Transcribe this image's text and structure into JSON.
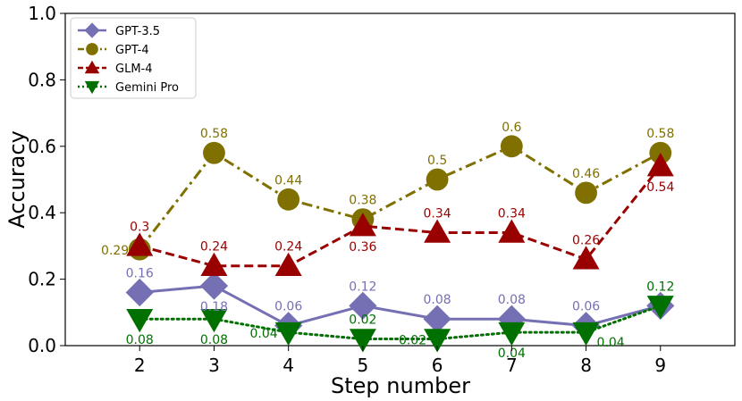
{
  "chart_data": {
    "type": "line",
    "title": "",
    "xlabel": "Step number",
    "ylabel": "Accuracy",
    "x": [
      2,
      3,
      4,
      5,
      6,
      7,
      8,
      9
    ],
    "x_ticks": [
      "2",
      "3",
      "4",
      "5",
      "6",
      "7",
      "8",
      "9"
    ],
    "xlim": [
      1,
      10
    ],
    "ylim": [
      0,
      1
    ],
    "y_ticks": [
      "0.0",
      "0.2",
      "0.4",
      "0.6",
      "0.8",
      "1.0"
    ],
    "grid": false,
    "legend_position": "top-left",
    "series": [
      {
        "name": "GPT-3.5",
        "color": "#7570b3",
        "marker": "diamond",
        "line_style": "solid",
        "values": [
          0.16,
          0.18,
          0.06,
          0.12,
          0.08,
          0.08,
          0.06,
          0.12
        ],
        "labels": [
          "0.16",
          "0.18",
          "0.06",
          "0.12",
          "0.08",
          "0.08",
          "0.06",
          ""
        ],
        "label_side": [
          "above",
          "below",
          "above",
          "above",
          "above",
          "above",
          "above",
          "above"
        ]
      },
      {
        "name": "GPT-4",
        "color": "#807000",
        "marker": "circle",
        "line_style": "dashdot",
        "values": [
          0.29,
          0.58,
          0.44,
          0.38,
          0.5,
          0.6,
          0.46,
          0.58
        ],
        "labels": [
          "0.29",
          "0.58",
          "0.44",
          "0.38",
          "0.5",
          "0.6",
          "0.46",
          "0.58"
        ],
        "label_side": [
          "left",
          "above",
          "above",
          "above",
          "above",
          "above",
          "above",
          "above"
        ]
      },
      {
        "name": "GLM-4",
        "color": "#990000",
        "marker": "triangle-up",
        "line_style": "dashed",
        "values": [
          0.3,
          0.24,
          0.24,
          0.36,
          0.34,
          0.34,
          0.26,
          0.54
        ],
        "labels": [
          "0.3",
          "0.24",
          "0.24",
          "0.36",
          "0.34",
          "0.34",
          "0.26",
          "0.54"
        ],
        "label_side": [
          "above",
          "above",
          "above",
          "below",
          "above",
          "above",
          "above",
          "below"
        ]
      },
      {
        "name": "Gemini Pro",
        "color": "#007000",
        "marker": "triangle-down",
        "line_style": "dotted",
        "values": [
          0.08,
          0.08,
          0.04,
          0.02,
          0.02,
          0.04,
          0.04,
          0.12
        ],
        "labels": [
          "0.08",
          "0.08",
          "0.04",
          "0.02",
          "0.02",
          "0.04",
          "0.04",
          "0.12"
        ],
        "label_side": [
          "below",
          "below",
          "left",
          "above",
          "left",
          "below",
          "right",
          "above"
        ]
      }
    ]
  }
}
